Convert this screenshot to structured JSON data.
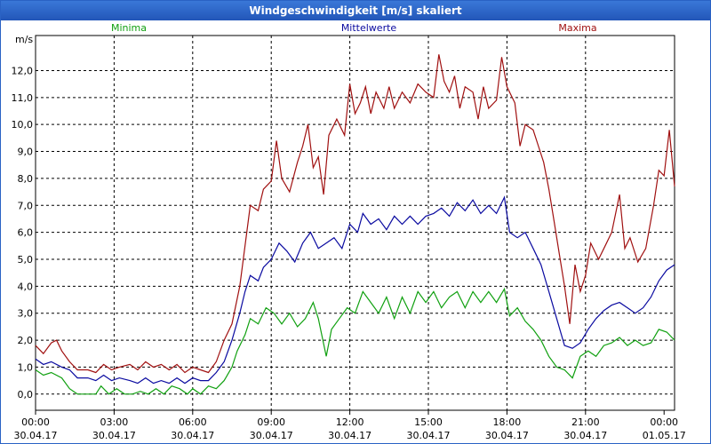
{
  "chart_data": {
    "type": "line",
    "title": "Windgeschwindigkeit [m/s] skaliert",
    "ylabel": "m/s",
    "ylim": [
      -0.6,
      13.3
    ],
    "grid": true,
    "legend": [
      "Minima",
      "Mittelwerte",
      "Maxima"
    ],
    "y_ticks": [
      "0,0",
      "1,0",
      "2,0",
      "3,0",
      "4,0",
      "5,0",
      "6,0",
      "7,0",
      "8,0",
      "9,0",
      "10,0",
      "11,0",
      "12,0"
    ],
    "x_ticks": [
      {
        "time": "00:00",
        "date": "30.04.17"
      },
      {
        "time": "03:00",
        "date": "30.04.17"
      },
      {
        "time": "06:00",
        "date": "30.04.17"
      },
      {
        "time": "09:00",
        "date": "30.04.17"
      },
      {
        "time": "12:00",
        "date": "30.04.17"
      },
      {
        "time": "15:00",
        "date": "30.04.17"
      },
      {
        "time": "18:00",
        "date": "30.04.17"
      },
      {
        "time": "21:00",
        "date": "30.04.17"
      },
      {
        "time": "00:00",
        "date": "01.05.17"
      }
    ],
    "x_unit": "hours",
    "series": [
      {
        "name": "Maxima",
        "color": "#a01010",
        "points": [
          [
            0,
            1.8
          ],
          [
            0.3,
            1.5
          ],
          [
            0.6,
            1.9
          ],
          [
            0.8,
            2.0
          ],
          [
            1.0,
            1.6
          ],
          [
            1.3,
            1.2
          ],
          [
            1.6,
            0.9
          ],
          [
            2.0,
            0.9
          ],
          [
            2.3,
            0.8
          ],
          [
            2.6,
            1.1
          ],
          [
            2.9,
            0.9
          ],
          [
            3.2,
            1.0
          ],
          [
            3.6,
            1.1
          ],
          [
            3.9,
            0.9
          ],
          [
            4.2,
            1.2
          ],
          [
            4.5,
            1.0
          ],
          [
            4.8,
            1.1
          ],
          [
            5.1,
            0.9
          ],
          [
            5.4,
            1.1
          ],
          [
            5.7,
            0.8
          ],
          [
            6.0,
            1.0
          ],
          [
            6.3,
            0.9
          ],
          [
            6.6,
            0.8
          ],
          [
            6.9,
            1.2
          ],
          [
            7.2,
            2.0
          ],
          [
            7.5,
            2.6
          ],
          [
            7.8,
            4.0
          ],
          [
            8.0,
            5.5
          ],
          [
            8.2,
            7.0
          ],
          [
            8.5,
            6.8
          ],
          [
            8.7,
            7.6
          ],
          [
            9.0,
            7.9
          ],
          [
            9.2,
            9.4
          ],
          [
            9.4,
            8.0
          ],
          [
            9.7,
            7.5
          ],
          [
            10.0,
            8.6
          ],
          [
            10.2,
            9.2
          ],
          [
            10.4,
            10.0
          ],
          [
            10.6,
            8.4
          ],
          [
            10.8,
            8.8
          ],
          [
            11.0,
            7.4
          ],
          [
            11.2,
            9.6
          ],
          [
            11.5,
            10.2
          ],
          [
            11.8,
            9.6
          ],
          [
            12.0,
            11.5
          ],
          [
            12.2,
            10.4
          ],
          [
            12.4,
            10.8
          ],
          [
            12.6,
            11.4
          ],
          [
            12.8,
            10.4
          ],
          [
            13.0,
            11.2
          ],
          [
            13.3,
            10.6
          ],
          [
            13.5,
            11.4
          ],
          [
            13.7,
            10.6
          ],
          [
            14.0,
            11.2
          ],
          [
            14.3,
            10.8
          ],
          [
            14.6,
            11.5
          ],
          [
            14.9,
            11.2
          ],
          [
            15.2,
            11.0
          ],
          [
            15.4,
            12.6
          ],
          [
            15.6,
            11.6
          ],
          [
            15.8,
            11.2
          ],
          [
            16.0,
            11.8
          ],
          [
            16.2,
            10.6
          ],
          [
            16.4,
            11.4
          ],
          [
            16.7,
            11.2
          ],
          [
            16.9,
            10.2
          ],
          [
            17.1,
            11.4
          ],
          [
            17.3,
            10.6
          ],
          [
            17.6,
            10.9
          ],
          [
            17.8,
            12.5
          ],
          [
            18.0,
            11.4
          ],
          [
            18.3,
            10.8
          ],
          [
            18.5,
            9.2
          ],
          [
            18.7,
            10.0
          ],
          [
            19.0,
            9.8
          ],
          [
            19.2,
            9.2
          ],
          [
            19.4,
            8.6
          ],
          [
            19.6,
            7.6
          ],
          [
            19.8,
            6.4
          ],
          [
            20.0,
            5.2
          ],
          [
            20.2,
            4.0
          ],
          [
            20.4,
            2.6
          ],
          [
            20.6,
            4.8
          ],
          [
            20.8,
            3.8
          ],
          [
            21.0,
            4.4
          ],
          [
            21.2,
            5.6
          ],
          [
            21.5,
            5.0
          ],
          [
            21.8,
            5.6
          ],
          [
            22.0,
            6.0
          ],
          [
            22.3,
            7.4
          ],
          [
            22.5,
            5.4
          ],
          [
            22.7,
            5.8
          ],
          [
            23.0,
            4.9
          ],
          [
            23.3,
            5.4
          ],
          [
            23.6,
            7.0
          ],
          [
            23.8,
            8.3
          ],
          [
            24.0,
            8.1
          ],
          [
            24.2,
            9.8
          ],
          [
            24.4,
            7.7
          ]
        ]
      },
      {
        "name": "Mittelwerte",
        "color": "#0a0aa0",
        "points": [
          [
            0,
            1.3
          ],
          [
            0.3,
            1.1
          ],
          [
            0.6,
            1.2
          ],
          [
            1.0,
            1.0
          ],
          [
            1.3,
            0.9
          ],
          [
            1.6,
            0.6
          ],
          [
            2.0,
            0.6
          ],
          [
            2.3,
            0.5
          ],
          [
            2.6,
            0.7
          ],
          [
            2.9,
            0.5
          ],
          [
            3.2,
            0.6
          ],
          [
            3.6,
            0.5
          ],
          [
            3.9,
            0.4
          ],
          [
            4.2,
            0.6
          ],
          [
            4.5,
            0.4
          ],
          [
            4.8,
            0.5
          ],
          [
            5.1,
            0.4
          ],
          [
            5.4,
            0.6
          ],
          [
            5.7,
            0.4
          ],
          [
            6.0,
            0.6
          ],
          [
            6.3,
            0.5
          ],
          [
            6.6,
            0.5
          ],
          [
            6.9,
            0.8
          ],
          [
            7.2,
            1.2
          ],
          [
            7.5,
            2.0
          ],
          [
            7.8,
            3.0
          ],
          [
            8.0,
            3.8
          ],
          [
            8.2,
            4.4
          ],
          [
            8.5,
            4.2
          ],
          [
            8.7,
            4.7
          ],
          [
            9.0,
            5.0
          ],
          [
            9.3,
            5.6
          ],
          [
            9.6,
            5.3
          ],
          [
            9.9,
            4.9
          ],
          [
            10.2,
            5.6
          ],
          [
            10.5,
            6.0
          ],
          [
            10.8,
            5.4
          ],
          [
            11.1,
            5.6
          ],
          [
            11.4,
            5.8
          ],
          [
            11.7,
            5.4
          ],
          [
            12.0,
            6.3
          ],
          [
            12.3,
            6.0
          ],
          [
            12.5,
            6.7
          ],
          [
            12.8,
            6.3
          ],
          [
            13.1,
            6.5
          ],
          [
            13.4,
            6.1
          ],
          [
            13.7,
            6.6
          ],
          [
            14.0,
            6.3
          ],
          [
            14.3,
            6.6
          ],
          [
            14.6,
            6.3
          ],
          [
            14.9,
            6.6
          ],
          [
            15.2,
            6.7
          ],
          [
            15.5,
            6.9
          ],
          [
            15.8,
            6.6
          ],
          [
            16.1,
            7.1
          ],
          [
            16.4,
            6.8
          ],
          [
            16.7,
            7.2
          ],
          [
            17.0,
            6.7
          ],
          [
            17.3,
            7.0
          ],
          [
            17.6,
            6.7
          ],
          [
            17.9,
            7.3
          ],
          [
            18.1,
            6.0
          ],
          [
            18.4,
            5.8
          ],
          [
            18.7,
            6.0
          ],
          [
            19.0,
            5.4
          ],
          [
            19.3,
            4.8
          ],
          [
            19.6,
            3.8
          ],
          [
            19.9,
            2.8
          ],
          [
            20.2,
            1.8
          ],
          [
            20.5,
            1.7
          ],
          [
            20.8,
            1.9
          ],
          [
            21.1,
            2.4
          ],
          [
            21.4,
            2.8
          ],
          [
            21.7,
            3.1
          ],
          [
            22.0,
            3.3
          ],
          [
            22.3,
            3.4
          ],
          [
            22.6,
            3.2
          ],
          [
            22.9,
            3.0
          ],
          [
            23.2,
            3.2
          ],
          [
            23.5,
            3.6
          ],
          [
            23.8,
            4.2
          ],
          [
            24.1,
            4.6
          ],
          [
            24.4,
            4.8
          ]
        ]
      },
      {
        "name": "Minima",
        "color": "#10a010",
        "points": [
          [
            0,
            0.9
          ],
          [
            0.3,
            0.7
          ],
          [
            0.6,
            0.8
          ],
          [
            1.0,
            0.6
          ],
          [
            1.3,
            0.2
          ],
          [
            1.6,
            0.0
          ],
          [
            2.0,
            0.0
          ],
          [
            2.3,
            0.0
          ],
          [
            2.5,
            0.3
          ],
          [
            2.8,
            0.0
          ],
          [
            3.1,
            0.2
          ],
          [
            3.4,
            0.0
          ],
          [
            3.7,
            0.0
          ],
          [
            4.0,
            0.1
          ],
          [
            4.3,
            0.0
          ],
          [
            4.6,
            0.2
          ],
          [
            4.9,
            0.0
          ],
          [
            5.2,
            0.3
          ],
          [
            5.5,
            0.2
          ],
          [
            5.8,
            0.0
          ],
          [
            6.0,
            0.2
          ],
          [
            6.3,
            0.0
          ],
          [
            6.6,
            0.3
          ],
          [
            6.9,
            0.2
          ],
          [
            7.2,
            0.5
          ],
          [
            7.5,
            1.0
          ],
          [
            7.7,
            1.6
          ],
          [
            8.0,
            2.2
          ],
          [
            8.2,
            2.8
          ],
          [
            8.5,
            2.6
          ],
          [
            8.8,
            3.2
          ],
          [
            9.1,
            3.0
          ],
          [
            9.4,
            2.6
          ],
          [
            9.7,
            3.0
          ],
          [
            10.0,
            2.5
          ],
          [
            10.3,
            2.8
          ],
          [
            10.6,
            3.4
          ],
          [
            10.8,
            2.8
          ],
          [
            11.1,
            1.4
          ],
          [
            11.3,
            2.4
          ],
          [
            11.6,
            2.8
          ],
          [
            11.9,
            3.2
          ],
          [
            12.2,
            3.0
          ],
          [
            12.5,
            3.8
          ],
          [
            12.8,
            3.4
          ],
          [
            13.1,
            3.0
          ],
          [
            13.4,
            3.6
          ],
          [
            13.7,
            2.8
          ],
          [
            14.0,
            3.6
          ],
          [
            14.3,
            3.0
          ],
          [
            14.6,
            3.8
          ],
          [
            14.9,
            3.4
          ],
          [
            15.2,
            3.8
          ],
          [
            15.5,
            3.2
          ],
          [
            15.8,
            3.6
          ],
          [
            16.1,
            3.8
          ],
          [
            16.4,
            3.2
          ],
          [
            16.7,
            3.8
          ],
          [
            17.0,
            3.4
          ],
          [
            17.3,
            3.8
          ],
          [
            17.6,
            3.4
          ],
          [
            17.9,
            3.9
          ],
          [
            18.1,
            2.9
          ],
          [
            18.4,
            3.2
          ],
          [
            18.7,
            2.7
          ],
          [
            19.0,
            2.4
          ],
          [
            19.3,
            2.0
          ],
          [
            19.6,
            1.4
          ],
          [
            19.9,
            1.0
          ],
          [
            20.2,
            0.9
          ],
          [
            20.5,
            0.6
          ],
          [
            20.8,
            1.4
          ],
          [
            21.1,
            1.6
          ],
          [
            21.4,
            1.4
          ],
          [
            21.7,
            1.8
          ],
          [
            22.0,
            1.9
          ],
          [
            22.3,
            2.1
          ],
          [
            22.6,
            1.8
          ],
          [
            22.9,
            2.0
          ],
          [
            23.2,
            1.8
          ],
          [
            23.5,
            1.9
          ],
          [
            23.8,
            2.4
          ],
          [
            24.1,
            2.3
          ],
          [
            24.4,
            2.0
          ]
        ]
      }
    ]
  }
}
